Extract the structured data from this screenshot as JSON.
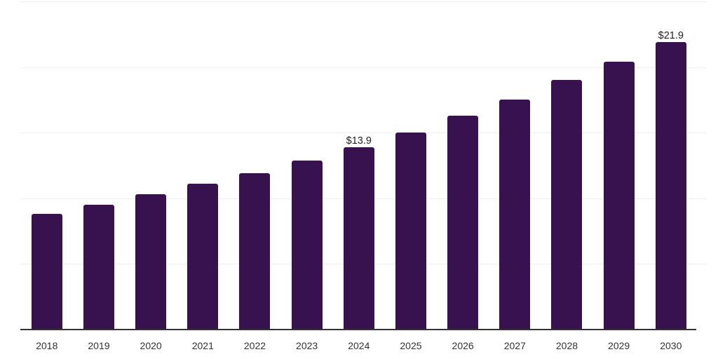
{
  "chart_data": {
    "type": "bar",
    "title": "",
    "xlabel": "",
    "ylabel": "",
    "categories": [
      "2018",
      "2019",
      "2020",
      "2021",
      "2022",
      "2023",
      "2024",
      "2025",
      "2026",
      "2027",
      "2028",
      "2029",
      "2030"
    ],
    "values": [
      8.8,
      9.5,
      10.3,
      11.1,
      11.9,
      12.9,
      13.9,
      15.0,
      16.3,
      17.5,
      19.0,
      20.4,
      21.9
    ],
    "labeled_points": [
      {
        "category": "2024",
        "label": "$13.9"
      },
      {
        "category": "2030",
        "label": "$21.9"
      }
    ],
    "ylim": [
      0,
      25
    ],
    "gridline_values": [
      5,
      10,
      15,
      20,
      25
    ],
    "grid": true,
    "legend_position": "none",
    "y_axis_tick_labels_visible": false,
    "colors": {
      "bar": "#38124E",
      "grid": "#F0F0F0",
      "axis": "#333333",
      "tick_label": "#333333",
      "value_label": "#1F1F1F",
      "background": "#FFFFFF"
    }
  }
}
